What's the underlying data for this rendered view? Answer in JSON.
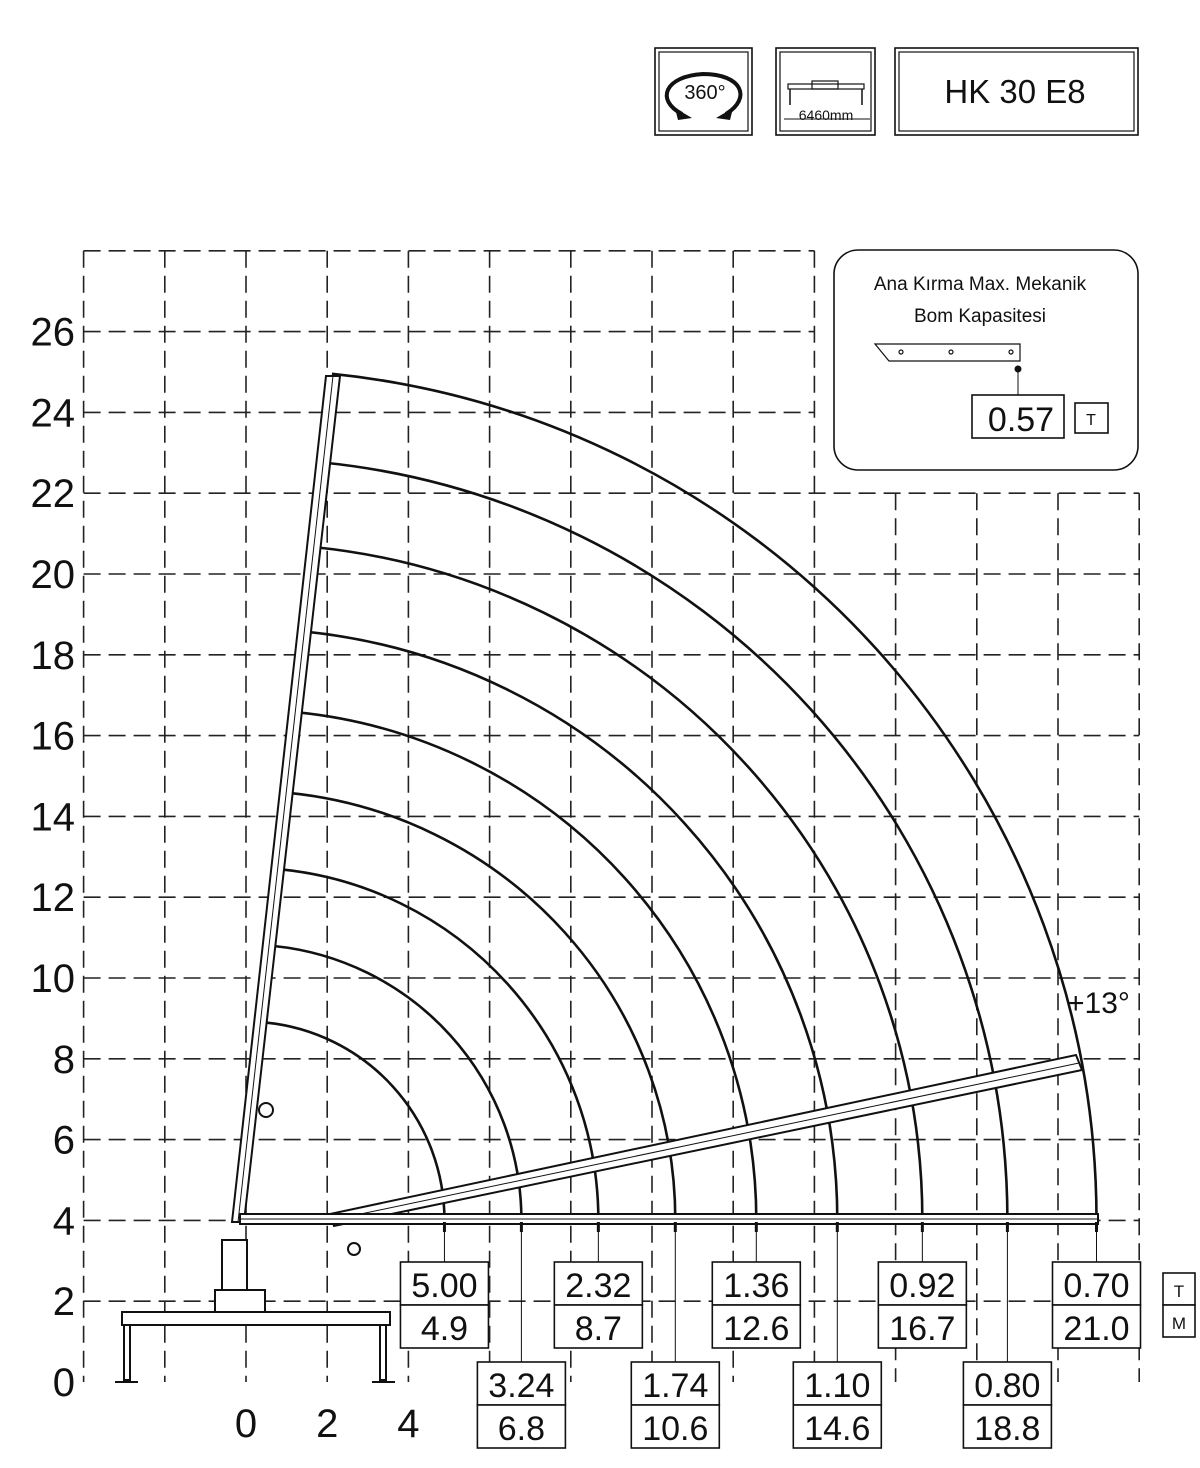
{
  "header": {
    "rotation_label": "360°",
    "outrigger_span_label": "6460mm",
    "model": "HK 30 E8"
  },
  "info_box": {
    "title_line1": "Ana Kırma Max. Mekanik",
    "title_line2": "Bom Kapasitesi",
    "capacity": "0.57",
    "unit": "T"
  },
  "axes": {
    "y_ticks": [
      "0",
      "2",
      "4",
      "6",
      "8",
      "10",
      "12",
      "14",
      "16",
      "18",
      "20",
      "22",
      "24",
      "26"
    ],
    "x_ticks": [
      "0",
      "2",
      "4"
    ]
  },
  "boom_angle_label": "+13°",
  "legend": {
    "top_unit": "T",
    "bottom_unit": "M"
  },
  "load_points": [
    {
      "load": "5.00",
      "radius": "4.9"
    },
    {
      "load": "3.24",
      "radius": "6.8"
    },
    {
      "load": "2.32",
      "radius": "8.7"
    },
    {
      "load": "1.74",
      "radius": "10.6"
    },
    {
      "load": "1.36",
      "radius": "12.6"
    },
    {
      "load": "1.10",
      "radius": "14.6"
    },
    {
      "load": "0.92",
      "radius": "16.7"
    },
    {
      "load": "0.80",
      "radius": "18.8"
    },
    {
      "load": "0.70",
      "radius": "21.0"
    }
  ]
}
